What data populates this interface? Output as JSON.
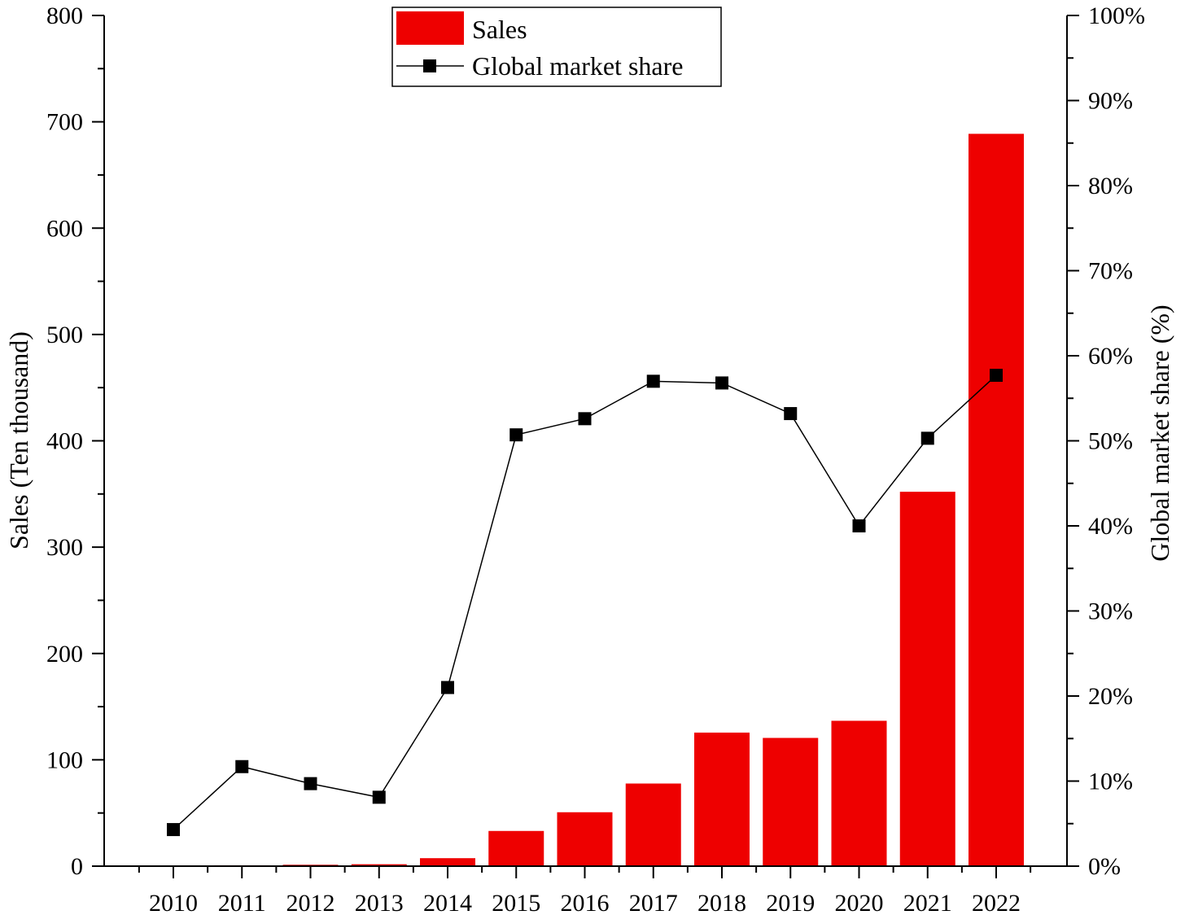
{
  "chart_data": {
    "type": "bar",
    "categories": [
      "2010",
      "2011",
      "2012",
      "2013",
      "2014",
      "2015",
      "2016",
      "2017",
      "2018",
      "2019",
      "2020",
      "2021",
      "2022"
    ],
    "series": [
      {
        "name": "Sales",
        "type": "bar",
        "axis": "left",
        "color": "#ee0000",
        "values": [
          0.5,
          0.8,
          1.3,
          1.8,
          7.5,
          33.1,
          50.7,
          77.7,
          125.6,
          120.6,
          136.7,
          352.1,
          688.7
        ]
      },
      {
        "name": "Global market share",
        "type": "line",
        "axis": "right",
        "color": "#000000",
        "values": [
          4.3,
          11.7,
          9.7,
          8.1,
          21.0,
          50.7,
          52.6,
          57.0,
          56.8,
          53.2,
          40.0,
          50.3,
          57.7
        ]
      }
    ],
    "ylabel": "Sales (Ten thousand)",
    "ylabel_right": "Global market share (%)",
    "ylim": [
      0,
      800
    ],
    "ylim_right": [
      0,
      100
    ],
    "yticks": [
      0,
      100,
      200,
      300,
      400,
      500,
      600,
      700,
      800
    ],
    "yticks_right": [
      "0%",
      "10%",
      "20%",
      "30%",
      "40%",
      "50%",
      "60%",
      "70%",
      "80%",
      "90%",
      "100%"
    ],
    "legend_position": "top-center",
    "grid": false
  }
}
